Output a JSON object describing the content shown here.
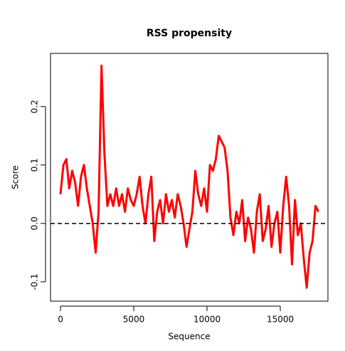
{
  "chart_data": {
    "type": "line",
    "title": "RSS propensity",
    "x_label": "Sequence",
    "y_label": "Score",
    "x": [
      0,
      200,
      400,
      600,
      800,
      1000,
      1200,
      1400,
      1600,
      1800,
      2000,
      2200,
      2400,
      2600,
      2800,
      3000,
      3200,
      3400,
      3600,
      3800,
      4000,
      4200,
      4400,
      4600,
      4800,
      5000,
      5200,
      5400,
      5600,
      5800,
      6000,
      6200,
      6400,
      6600,
      6800,
      7000,
      7200,
      7400,
      7600,
      7800,
      8000,
      8200,
      8400,
      8600,
      8800,
      9000,
      9200,
      9400,
      9600,
      9800,
      10000,
      10200,
      10400,
      10600,
      10800,
      11000,
      11200,
      11400,
      11600,
      11800,
      12000,
      12200,
      12400,
      12600,
      12800,
      13000,
      13200,
      13400,
      13600,
      13800,
      14000,
      14200,
      14400,
      14600,
      14800,
      15000,
      15200,
      15400,
      15600,
      15800,
      16000,
      16200,
      16400,
      16600,
      16800,
      17000,
      17200,
      17400,
      17600
    ],
    "series": [
      {
        "name": "Score",
        "color": "#ff0000",
        "values": [
          0.05,
          0.1,
          0.11,
          0.06,
          0.09,
          0.07,
          0.03,
          0.08,
          0.1,
          0.06,
          0.03,
          0.0,
          -0.05,
          0.02,
          0.27,
          0.12,
          0.03,
          0.05,
          0.03,
          0.06,
          0.03,
          0.05,
          0.02,
          0.06,
          0.04,
          0.03,
          0.05,
          0.08,
          0.03,
          0.0,
          0.05,
          0.08,
          -0.03,
          0.02,
          0.04,
          0.0,
          0.05,
          0.02,
          0.04,
          0.01,
          0.05,
          0.03,
          0.0,
          -0.04,
          -0.01,
          0.02,
          0.09,
          0.05,
          0.03,
          0.06,
          0.02,
          0.1,
          0.09,
          0.11,
          0.15,
          0.14,
          0.13,
          0.09,
          0.01,
          -0.02,
          0.02,
          0.0,
          0.04,
          -0.03,
          0.01,
          -0.01,
          -0.05,
          0.02,
          0.05,
          -0.03,
          -0.01,
          0.03,
          -0.04,
          0.0,
          0.02,
          -0.05,
          0.03,
          0.08,
          0.03,
          -0.07,
          0.04,
          -0.02,
          0.0,
          -0.06,
          -0.11,
          -0.05,
          -0.03,
          0.03,
          0.02
        ]
      }
    ],
    "reference_line": 0,
    "xlim": [
      -680,
      18250
    ],
    "ylim": [
      -0.133,
      0.291
    ],
    "xticks": [
      0,
      5000,
      10000,
      15000
    ],
    "yticks": [
      {
        "value": -0.1,
        "label": "-0.1"
      },
      {
        "value": 0,
        "label": "0.0"
      },
      {
        "value": 0.1,
        "label": "0.1"
      },
      {
        "value": 0.2,
        "label": "0.2"
      }
    ]
  }
}
